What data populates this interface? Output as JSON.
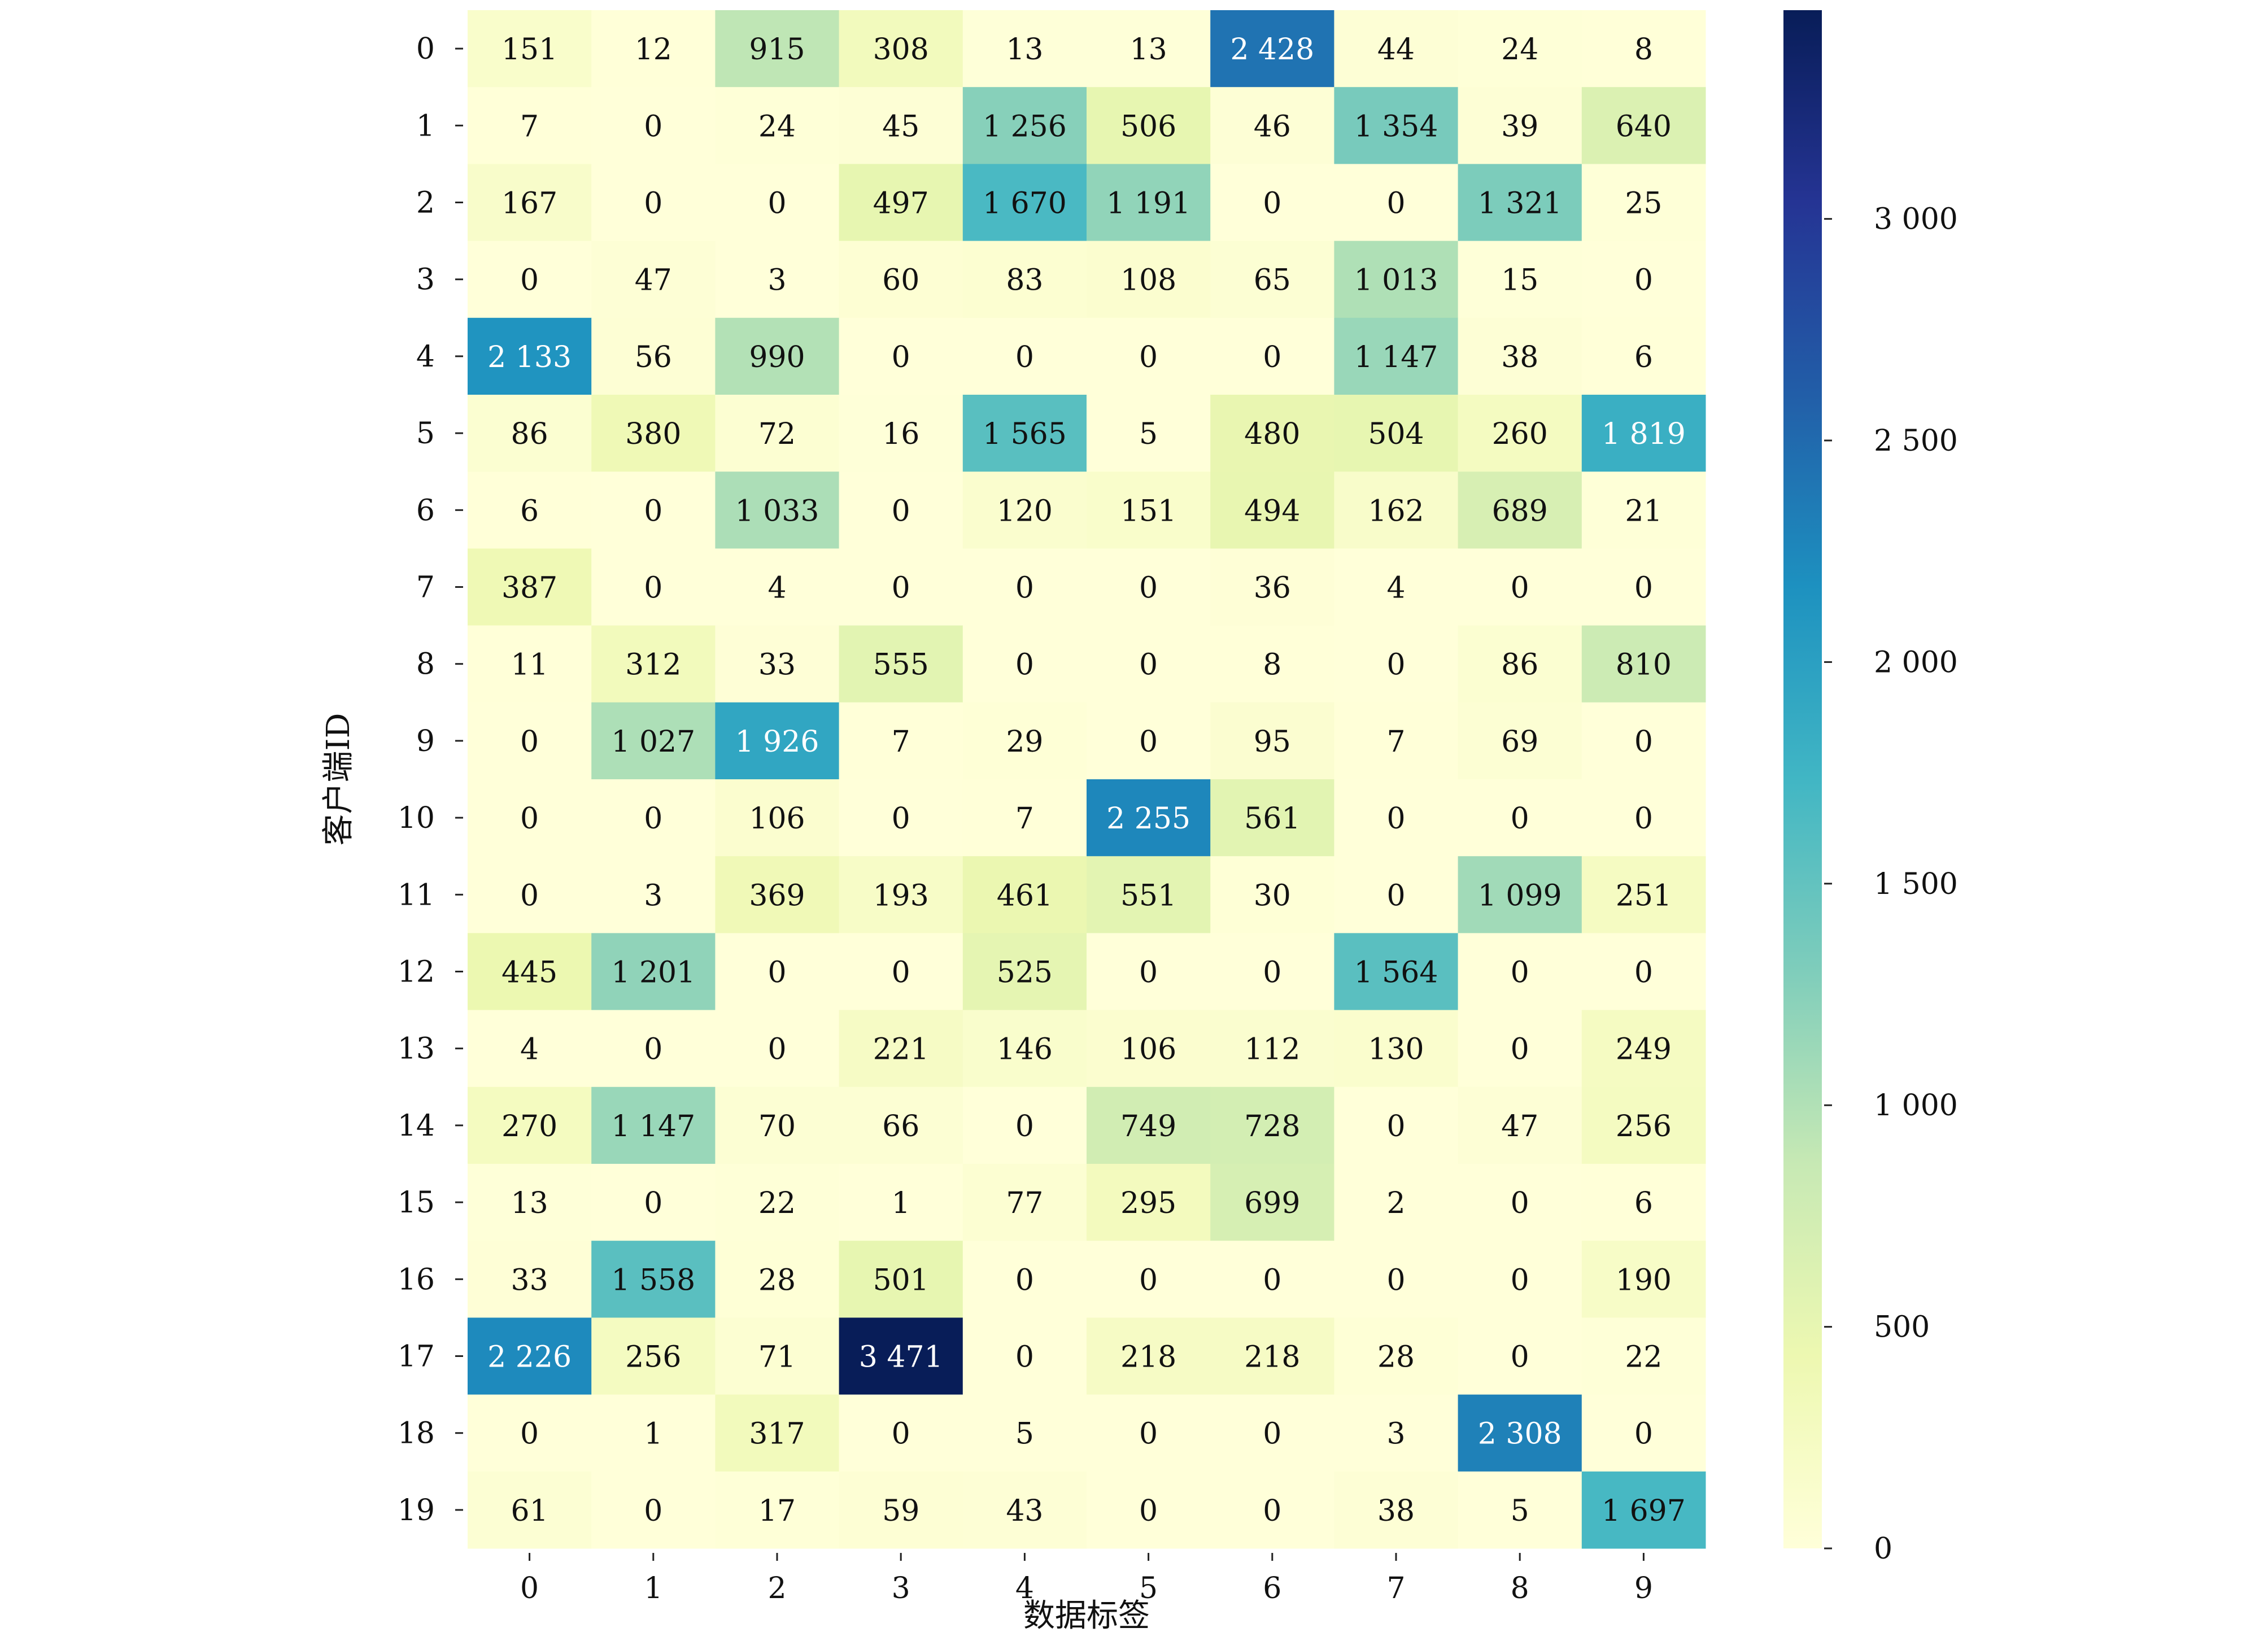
{
  "chart_data": {
    "type": "heatmap",
    "xlabel": "数据标签",
    "ylabel": "客户端ID",
    "x_categories": [
      "0",
      "1",
      "2",
      "3",
      "4",
      "5",
      "6",
      "7",
      "8",
      "9"
    ],
    "y_categories": [
      "0",
      "1",
      "2",
      "3",
      "4",
      "5",
      "6",
      "7",
      "8",
      "9",
      "10",
      "11",
      "12",
      "13",
      "14",
      "15",
      "16",
      "17",
      "18",
      "19"
    ],
    "values": [
      [
        151,
        12,
        915,
        308,
        13,
        13,
        2428,
        44,
        24,
        8
      ],
      [
        7,
        0,
        24,
        45,
        1256,
        506,
        46,
        1354,
        39,
        640
      ],
      [
        167,
        0,
        0,
        497,
        1670,
        1191,
        0,
        0,
        1321,
        25
      ],
      [
        0,
        47,
        3,
        60,
        83,
        108,
        65,
        1013,
        15,
        0
      ],
      [
        2133,
        56,
        990,
        0,
        0,
        0,
        0,
        1147,
        38,
        6
      ],
      [
        86,
        380,
        72,
        16,
        1565,
        5,
        480,
        504,
        260,
        1819
      ],
      [
        6,
        0,
        1033,
        0,
        120,
        151,
        494,
        162,
        689,
        21
      ],
      [
        387,
        0,
        4,
        0,
        0,
        0,
        36,
        4,
        0,
        0
      ],
      [
        11,
        312,
        33,
        555,
        0,
        0,
        8,
        0,
        86,
        810
      ],
      [
        0,
        1027,
        1926,
        7,
        29,
        0,
        95,
        7,
        69,
        0
      ],
      [
        0,
        0,
        106,
        0,
        7,
        2255,
        561,
        0,
        0,
        0
      ],
      [
        0,
        3,
        369,
        193,
        461,
        551,
        30,
        0,
        1099,
        251
      ],
      [
        445,
        1201,
        0,
        0,
        525,
        0,
        0,
        1564,
        0,
        0
      ],
      [
        4,
        0,
        0,
        221,
        146,
        106,
        112,
        130,
        0,
        249
      ],
      [
        270,
        1147,
        70,
        66,
        0,
        749,
        728,
        0,
        47,
        256
      ],
      [
        13,
        0,
        22,
        1,
        77,
        295,
        699,
        2,
        0,
        6
      ],
      [
        33,
        1558,
        28,
        501,
        0,
        0,
        0,
        0,
        0,
        190
      ],
      [
        2226,
        256,
        71,
        3471,
        0,
        218,
        218,
        28,
        0,
        22
      ],
      [
        0,
        1,
        317,
        0,
        5,
        0,
        0,
        3,
        2308,
        0
      ],
      [
        61,
        0,
        17,
        59,
        43,
        0,
        0,
        38,
        5,
        1697
      ]
    ],
    "cell_labels": [
      [
        "151",
        "12",
        "915",
        "308",
        "13",
        "13",
        "2 428",
        "44",
        "24",
        "8"
      ],
      [
        "7",
        "0",
        "24",
        "45",
        "1 256",
        "506",
        "46",
        "1 354",
        "39",
        "640"
      ],
      [
        "167",
        "0",
        "0",
        "497",
        "1 670",
        "1 191",
        "0",
        "0",
        "1 321",
        "25"
      ],
      [
        "0",
        "47",
        "3",
        "60",
        "83",
        "108",
        "65",
        "1 013",
        "15",
        "0"
      ],
      [
        "2 133",
        "56",
        "990",
        "0",
        "0",
        "0",
        "0",
        "1 147",
        "38",
        "6"
      ],
      [
        "86",
        "380",
        "72",
        "16",
        "1 565",
        "5",
        "480",
        "504",
        "260",
        "1 819"
      ],
      [
        "6",
        "0",
        "1 033",
        "0",
        "120",
        "151",
        "494",
        "162",
        "689",
        "21"
      ],
      [
        "387",
        "0",
        "4",
        "0",
        "0",
        "0",
        "36",
        "4",
        "0",
        "0"
      ],
      [
        "11",
        "312",
        "33",
        "555",
        "0",
        "0",
        "8",
        "0",
        "86",
        "810"
      ],
      [
        "0",
        "1 027",
        "1 926",
        "7",
        "29",
        "0",
        "95",
        "7",
        "69",
        "0"
      ],
      [
        "0",
        "0",
        "106",
        "0",
        "7",
        "2 255",
        "561",
        "0",
        "0",
        "0"
      ],
      [
        "0",
        "3",
        "369",
        "193",
        "461",
        "551",
        "30",
        "0",
        "1 099",
        "251"
      ],
      [
        "445",
        "1 201",
        "0",
        "0",
        "525",
        "0",
        "0",
        "1 564",
        "0",
        "0"
      ],
      [
        "4",
        "0",
        "0",
        "221",
        "146",
        "106",
        "112",
        "130",
        "0",
        "249"
      ],
      [
        "270",
        "1 147",
        "70",
        "66",
        "0",
        "749",
        "728",
        "0",
        "47",
        "256"
      ],
      [
        "13",
        "0",
        "22",
        "1",
        "77",
        "295",
        "699",
        "2",
        "0",
        "6"
      ],
      [
        "33",
        "1 558",
        "28",
        "501",
        "0",
        "0",
        "0",
        "0",
        "0",
        "190"
      ],
      [
        "2 226",
        "256",
        "71",
        "3 471",
        "0",
        "218",
        "218",
        "28",
        "0",
        "22"
      ],
      [
        "0",
        "1",
        "317",
        "0",
        "5",
        "0",
        "0",
        "3",
        "2 308",
        "0"
      ],
      [
        "61",
        "0",
        "17",
        "59",
        "43",
        "0",
        "0",
        "38",
        "5",
        "1 697"
      ]
    ],
    "colormap": "YlGnBu",
    "colorbar": {
      "range": [
        0,
        3471
      ],
      "ticks": [
        0,
        500,
        1000,
        1500,
        2000,
        2500,
        3000
      ],
      "tick_labels": [
        "0",
        "500",
        "1 000",
        "1 500",
        "2 000",
        "2 500",
        "3 000"
      ]
    },
    "grid": false,
    "legend": "colorbar-right"
  }
}
